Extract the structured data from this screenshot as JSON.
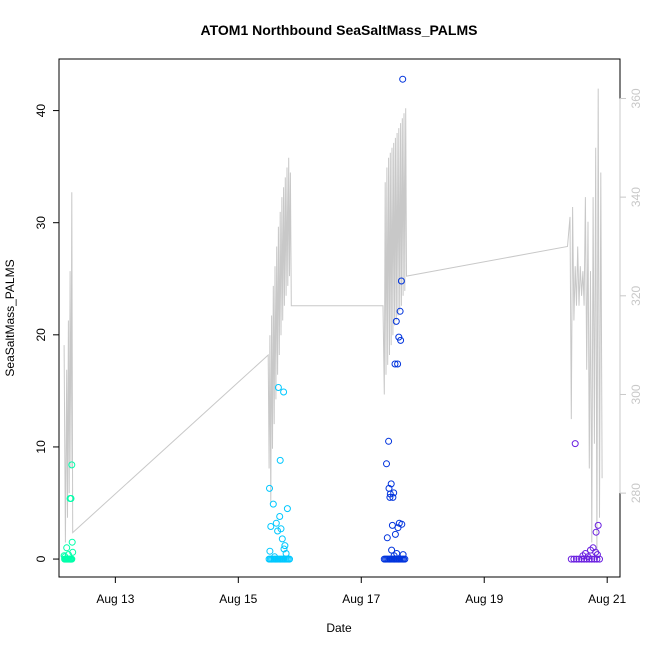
{
  "chart_data": {
    "type": "scatter",
    "title": "ATOM1 Northbound SeaSaltMass_PALMS",
    "xlabel": "Date",
    "ylabel": "SeaSaltMass_PALMS",
    "x_ticks": [
      "Aug 13",
      "Aug 15",
      "Aug 17",
      "Aug 19",
      "Aug 21"
    ],
    "y_ticks": [
      0,
      10,
      20,
      30,
      40
    ],
    "y2_ticks": [
      280,
      300,
      320,
      340,
      360
    ],
    "xlim": [
      "2016-08-12T02:00",
      "2016-08-21T05:00"
    ],
    "ylim": [
      -1.6,
      44.6
    ],
    "y2lim": [
      263,
      368
    ],
    "colors": {
      "axis": "#000000",
      "altitude": "#c8c8c8",
      "right_axis": "#c8c8c8"
    },
    "series": [
      {
        "kind": "points",
        "color": "#00ffaa",
        "x": [
          "2016-08-12T04:10",
          "2016-08-12T04:30",
          "2016-08-12T04:50",
          "2016-08-12T05:10",
          "2016-08-12T05:30",
          "2016-08-12T05:50",
          "2016-08-12T06:10",
          "2016-08-12T06:20",
          "2016-08-12T06:30",
          "2016-08-12T06:45",
          "2016-08-12T07:00",
          "2016-08-12T07:10",
          "2016-08-12T07:20",
          "2016-08-12T04:20",
          "2016-08-12T05:00",
          "2016-08-12T05:40"
        ],
        "y": [
          0,
          0,
          0,
          0,
          0,
          0,
          0,
          0,
          0,
          0,
          0,
          1.5,
          0.6,
          0.2,
          1.0,
          0.4
        ]
      },
      {
        "kind": "points",
        "color": "#00ffaa",
        "x": [
          "2016-08-12T04:00",
          "2016-08-12T06:20",
          "2016-08-12T06:40",
          "2016-08-12T07:00"
        ],
        "y": [
          0.3,
          5.4,
          5.4,
          8.4
        ]
      },
      {
        "kind": "points",
        "color": "#00c8ff",
        "x": [
          "2016-08-15T12:00",
          "2016-08-15T12:30",
          "2016-08-15T13:00",
          "2016-08-15T13:30",
          "2016-08-15T14:00",
          "2016-08-15T14:30",
          "2016-08-15T15:00",
          "2016-08-15T15:30",
          "2016-08-15T16:00",
          "2016-08-15T16:30",
          "2016-08-15T17:00",
          "2016-08-15T17:30",
          "2016-08-15T18:00",
          "2016-08-15T18:30",
          "2016-08-15T19:00",
          "2016-08-15T19:30",
          "2016-08-15T20:00",
          "2016-08-15T12:10",
          "2016-08-15T12:20",
          "2016-08-15T13:40",
          "2016-08-15T14:50",
          "2016-08-15T15:20",
          "2016-08-15T16:10",
          "2016-08-15T16:40",
          "2016-08-15T17:10",
          "2016-08-15T17:50",
          "2016-08-15T18:10",
          "2016-08-15T18:40",
          "2016-08-15T19:10",
          "2016-08-15T12:40",
          "2016-08-15T15:40",
          "2016-08-15T16:20",
          "2016-08-15T17:40",
          "2016-08-15T14:10"
        ],
        "y": [
          0,
          0,
          0,
          0,
          0,
          0,
          0,
          0,
          0,
          0,
          0,
          0,
          0,
          0,
          0,
          0,
          0,
          6.3,
          0.7,
          4.9,
          3.2,
          2.5,
          3.8,
          2.7,
          1.8,
          0.9,
          1.2,
          0.5,
          4.5,
          2.9,
          15.3,
          8.8,
          14.9,
          0.2
        ]
      },
      {
        "kind": "points",
        "color": "#0033dd",
        "x": [
          "2016-08-17T09:00",
          "2016-08-17T09:30",
          "2016-08-17T10:00",
          "2016-08-17T10:30",
          "2016-08-17T11:00",
          "2016-08-17T11:30",
          "2016-08-17T12:00",
          "2016-08-17T12:30",
          "2016-08-17T13:00",
          "2016-08-17T13:30",
          "2016-08-17T14:00",
          "2016-08-17T14:30",
          "2016-08-17T15:00",
          "2016-08-17T15:30",
          "2016-08-17T16:00",
          "2016-08-17T16:30",
          "2016-08-17T17:00",
          "2016-08-17T09:50",
          "2016-08-17T10:10",
          "2016-08-17T10:40",
          "2016-08-17T11:10",
          "2016-08-17T11:40",
          "2016-08-17T12:10",
          "2016-08-17T12:40",
          "2016-08-17T13:10",
          "2016-08-17T13:40",
          "2016-08-17T14:10",
          "2016-08-17T14:40",
          "2016-08-17T15:10",
          "2016-08-17T15:40",
          "2016-08-17T16:10",
          "2016-08-17T10:50",
          "2016-08-17T11:20",
          "2016-08-17T12:20",
          "2016-08-17T13:20",
          "2016-08-17T14:20",
          "2016-08-17T14:50",
          "2016-08-17T13:50",
          "2016-08-17T12:50",
          "2016-08-17T11:50",
          "2016-08-17T15:20",
          "2016-08-17T15:50",
          "2016-08-17T16:20"
        ],
        "y": [
          0,
          0,
          0,
          0,
          0,
          0,
          0,
          0,
          0,
          0,
          0,
          0,
          0,
          0,
          0,
          0,
          0,
          8.5,
          1.9,
          10.5,
          5.5,
          6.7,
          3.0,
          5.9,
          17.4,
          21.2,
          17.4,
          19.8,
          22.1,
          24.8,
          42.8,
          6.3,
          5.8,
          5.5,
          2.2,
          2.8,
          3.2,
          0.5,
          0.3,
          0.8,
          19.5,
          3.1,
          0.4
        ]
      },
      {
        "kind": "points",
        "color": "#6a1fe0",
        "x": [
          "2016-08-20T10:00",
          "2016-08-20T11:00",
          "2016-08-20T12:00",
          "2016-08-20T13:00",
          "2016-08-20T14:00",
          "2016-08-20T15:00",
          "2016-08-20T16:00",
          "2016-08-20T17:00",
          "2016-08-20T18:00",
          "2016-08-20T19:00",
          "2016-08-20T20:00",
          "2016-08-20T21:00",
          "2016-08-20T14:30",
          "2016-08-20T15:30",
          "2016-08-20T16:30",
          "2016-08-20T17:30",
          "2016-08-20T18:30",
          "2016-08-20T19:30",
          "2016-08-20T20:30",
          "2016-08-20T11:30",
          "2016-08-20T19:40",
          "2016-08-20T20:10"
        ],
        "y": [
          0,
          0,
          0,
          0,
          0,
          0,
          0,
          0,
          0,
          0,
          0,
          0,
          0.3,
          0.5,
          0.2,
          0.8,
          1.0,
          0.6,
          3.0,
          10.3,
          2.4,
          0.4
        ]
      }
    ],
    "altitude_line": {
      "axis": "y2",
      "color": "#c8c8c8",
      "x": [
        "2016-08-12T04:00",
        "2016-08-12T04:30",
        "2016-08-12T05:00",
        "2016-08-12T05:20",
        "2016-08-12T05:40",
        "2016-08-12T06:00",
        "2016-08-12T06:20",
        "2016-08-12T06:40",
        "2016-08-12T07:00",
        "2016-08-12T07:20",
        "2016-08-15T11:40",
        "2016-08-15T12:00",
        "2016-08-15T12:20",
        "2016-08-15T12:40",
        "2016-08-15T13:00",
        "2016-08-15T13:20",
        "2016-08-15T13:40",
        "2016-08-15T14:00",
        "2016-08-15T14:20",
        "2016-08-15T14:40",
        "2016-08-15T15:00",
        "2016-08-15T15:20",
        "2016-08-15T15:40",
        "2016-08-15T16:00",
        "2016-08-15T16:20",
        "2016-08-15T16:40",
        "2016-08-15T17:00",
        "2016-08-15T17:20",
        "2016-08-15T17:40",
        "2016-08-15T18:00",
        "2016-08-15T18:20",
        "2016-08-15T18:40",
        "2016-08-15T19:00",
        "2016-08-15T19:20",
        "2016-08-15T19:40",
        "2016-08-15T20:00",
        "2016-08-15T20:20",
        "2016-08-15T20:40",
        "2016-08-17T08:30",
        "2016-08-17T09:00",
        "2016-08-17T09:20",
        "2016-08-17T09:40",
        "2016-08-17T10:00",
        "2016-08-17T10:20",
        "2016-08-17T10:40",
        "2016-08-17T11:00",
        "2016-08-17T11:20",
        "2016-08-17T11:40",
        "2016-08-17T12:00",
        "2016-08-17T12:20",
        "2016-08-17T12:40",
        "2016-08-17T13:00",
        "2016-08-17T13:20",
        "2016-08-17T13:40",
        "2016-08-17T14:00",
        "2016-08-17T14:20",
        "2016-08-17T14:40",
        "2016-08-17T15:00",
        "2016-08-17T15:20",
        "2016-08-17T15:40",
        "2016-08-17T16:00",
        "2016-08-17T16:20",
        "2016-08-17T16:40",
        "2016-08-17T17:00",
        "2016-08-17T17:20",
        "2016-08-17T17:40",
        "2016-08-20T08:30",
        "2016-08-20T09:30",
        "2016-08-20T10:00",
        "2016-08-20T10:30",
        "2016-08-20T11:00",
        "2016-08-20T11:30",
        "2016-08-20T12:00",
        "2016-08-20T12:30",
        "2016-08-20T13:00",
        "2016-08-20T13:30",
        "2016-08-20T14:00",
        "2016-08-20T14:30",
        "2016-08-20T15:00",
        "2016-08-20T15:30",
        "2016-08-20T16:00",
        "2016-08-20T16:30",
        "2016-08-20T17:00",
        "2016-08-20T17:30",
        "2016-08-20T18:00",
        "2016-08-20T18:30",
        "2016-08-20T19:00",
        "2016-08-20T19:30",
        "2016-08-20T20:00",
        "2016-08-20T20:30",
        "2016-08-20T21:00",
        "2016-08-20T21:30",
        "2016-08-20T22:00"
      ],
      "y": [
        310,
        270,
        305,
        275,
        315,
        280,
        325,
        285,
        341,
        272,
        308,
        285,
        312,
        278,
        316,
        289,
        322,
        294,
        326,
        299,
        330,
        304,
        334,
        308,
        337,
        312,
        340,
        315,
        342,
        318,
        344,
        320,
        346,
        322,
        348,
        324,
        345,
        318,
        318,
        300,
        343,
        304,
        346,
        306,
        348,
        308,
        349,
        310,
        350,
        312,
        351,
        314,
        352,
        315,
        353,
        316,
        354,
        317,
        355,
        318,
        356,
        320,
        357,
        321,
        358,
        324,
        330,
        336,
        295,
        338,
        315,
        326,
        318,
        330,
        318,
        326,
        320,
        325,
        318,
        340,
        305,
        335,
        285,
        325,
        270,
        340,
        290,
        350,
        268,
        362,
        275,
        345,
        283
      ]
    }
  }
}
